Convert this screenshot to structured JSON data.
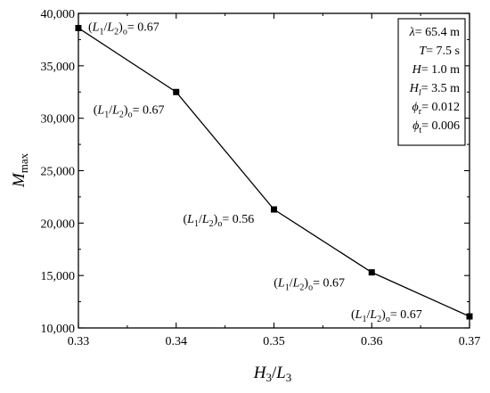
{
  "chart_data": {
    "type": "line",
    "x": [
      0.33,
      0.34,
      0.35,
      0.36,
      0.37
    ],
    "y": [
      38600,
      32500,
      21300,
      15300,
      11100
    ],
    "xlim": [
      0.33,
      0.37
    ],
    "ylim": [
      10000,
      40000
    ],
    "x_ticks": [
      "0.33",
      "0.34",
      "0.35",
      "0.36",
      "0.37"
    ],
    "y_ticks": [
      "10,000",
      "15,000",
      "20,000",
      "25,000",
      "30,000",
      "35,000",
      "40,000"
    ],
    "xlabel": {
      "main": "H",
      "sub": "3",
      "sep": "/",
      "main2": "L",
      "sub2": "3"
    },
    "ylabel": {
      "main": "M",
      "sub": "max"
    },
    "grid": false,
    "annotations": [
      {
        "lhs": [
          "(",
          "L",
          "1",
          "/",
          "L",
          "2",
          ")",
          "o"
        ],
        "value": "= 0.67",
        "point_index": 0
      },
      {
        "lhs": [
          "(",
          "L",
          "1",
          "/",
          "L",
          "2",
          ")",
          "o"
        ],
        "value": "= 0.67",
        "point_index": 1
      },
      {
        "lhs": [
          "(",
          "L",
          "1",
          "/",
          "L",
          "2",
          ")",
          "o"
        ],
        "value": "= 0.56",
        "point_index": 2
      },
      {
        "lhs": [
          "(",
          "L",
          "1",
          "/",
          "L",
          "2",
          ")",
          "o"
        ],
        "value": "= 0.67",
        "point_index": 3
      },
      {
        "lhs": [
          "(",
          "L",
          "1",
          "/",
          "L",
          "2",
          ")",
          "o"
        ],
        "value": "= 0.67",
        "point_index": 4
      }
    ],
    "parameters": [
      {
        "sym": "λ",
        "sub": "",
        "value": "= 65.4 m"
      },
      {
        "sym": "T",
        "sub": "",
        "value": "= 7.5 s"
      },
      {
        "sym": "H",
        "sub": "",
        "value": "= 1.0 m"
      },
      {
        "sym": "H",
        "sub": "l",
        "value": "= 3.5 m"
      },
      {
        "sym": "ϕ",
        "sub": "r",
        "value": "= 0.012"
      },
      {
        "sym": "ϕ",
        "sub": "t",
        "value": "= 0.006"
      }
    ]
  }
}
